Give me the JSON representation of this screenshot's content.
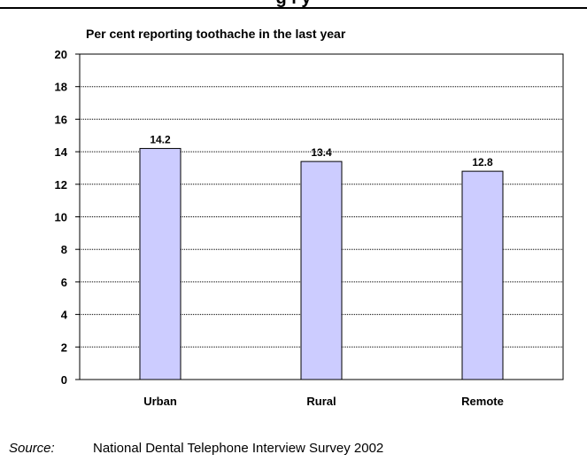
{
  "header": {
    "title_fragment": "g l y"
  },
  "chart_data": {
    "type": "bar",
    "title": "Per cent reporting toothache in the last year",
    "categories": [
      "Urban",
      "Rural",
      "Remote"
    ],
    "values": [
      14.2,
      13.4,
      12.8
    ],
    "data_labels": [
      "14.2",
      "13.4",
      "12.8"
    ],
    "ylim": [
      0,
      20
    ],
    "yticks": [
      0,
      2,
      4,
      6,
      8,
      10,
      12,
      14,
      16,
      18,
      20
    ],
    "grid": true,
    "bar_color": "#ccccff",
    "xlabel": "",
    "ylabel": ""
  },
  "source": {
    "label": "Source:",
    "text": "National Dental Telephone Interview Survey 2002"
  }
}
